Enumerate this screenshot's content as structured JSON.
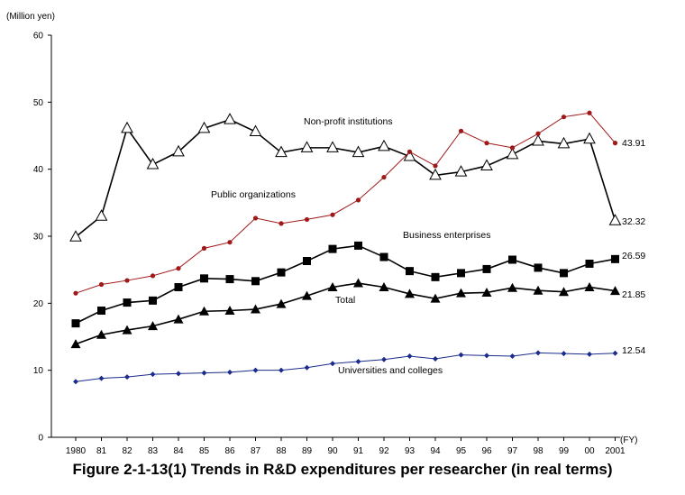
{
  "chart_data": {
    "type": "line",
    "title": "Figure 2-1-13(1)   Trends in R&D expenditures per researcher (in real terms)",
    "ylabel": "(Million yen)",
    "xlabel": "(FY)",
    "ylim": [
      0,
      60
    ],
    "yticks": [
      "0",
      "10",
      "20",
      "30",
      "40",
      "50",
      "60"
    ],
    "x_labels": [
      "1980",
      "81",
      "82",
      "83",
      "84",
      "85",
      "86",
      "87",
      "88",
      "89",
      "90",
      "91",
      "92",
      "93",
      "94",
      "95",
      "96",
      "97",
      "98",
      "99",
      "00",
      "2001"
    ],
    "grid": false,
    "series": [
      {
        "name": "Non-profit institutions",
        "marker": "open-triangle",
        "color": "#000000",
        "values": [
          29.9,
          33.0,
          46.1,
          40.7,
          42.6,
          46.1,
          47.4,
          45.6,
          42.5,
          43.2,
          43.2,
          42.5,
          43.4,
          41.9,
          39.1,
          39.6,
          40.5,
          42.2,
          44.2,
          43.8,
          44.5,
          32.32
        ],
        "end_label": "32.32"
      },
      {
        "name": "Public organizations",
        "marker": "small-dot",
        "color": "#a01818",
        "values": [
          21.5,
          22.8,
          23.4,
          24.1,
          25.2,
          28.2,
          29.1,
          32.7,
          31.9,
          32.5,
          33.2,
          35.4,
          38.8,
          42.6,
          40.5,
          45.7,
          43.9,
          43.2,
          45.3,
          47.8,
          48.4,
          43.91
        ],
        "end_label": "43.91"
      },
      {
        "name": "Business enterprises",
        "marker": "filled-square",
        "color": "#000000",
        "values": [
          17.0,
          18.9,
          20.1,
          20.4,
          22.4,
          23.7,
          23.6,
          23.3,
          24.6,
          26.3,
          28.1,
          28.6,
          26.9,
          24.8,
          23.9,
          24.5,
          25.1,
          26.5,
          25.3,
          24.5,
          25.9,
          26.59
        ],
        "end_label": "26.59"
      },
      {
        "name": "Total",
        "marker": "filled-triangle",
        "color": "#000000",
        "values": [
          13.9,
          15.3,
          16.0,
          16.6,
          17.6,
          18.8,
          18.9,
          19.1,
          19.9,
          21.1,
          22.4,
          23.0,
          22.4,
          21.4,
          20.7,
          21.5,
          21.6,
          22.3,
          21.9,
          21.7,
          22.4,
          21.85
        ],
        "end_label": "21.85"
      },
      {
        "name": "Universities and colleges",
        "marker": "small-diamond",
        "color": "#1c2c8c",
        "values": [
          8.3,
          8.8,
          9.0,
          9.4,
          9.5,
          9.6,
          9.7,
          10.0,
          10.0,
          10.4,
          11.0,
          11.3,
          11.6,
          12.1,
          11.7,
          12.3,
          12.2,
          12.1,
          12.6,
          12.5,
          12.4,
          12.54
        ],
        "end_label": "12.54"
      }
    ]
  }
}
